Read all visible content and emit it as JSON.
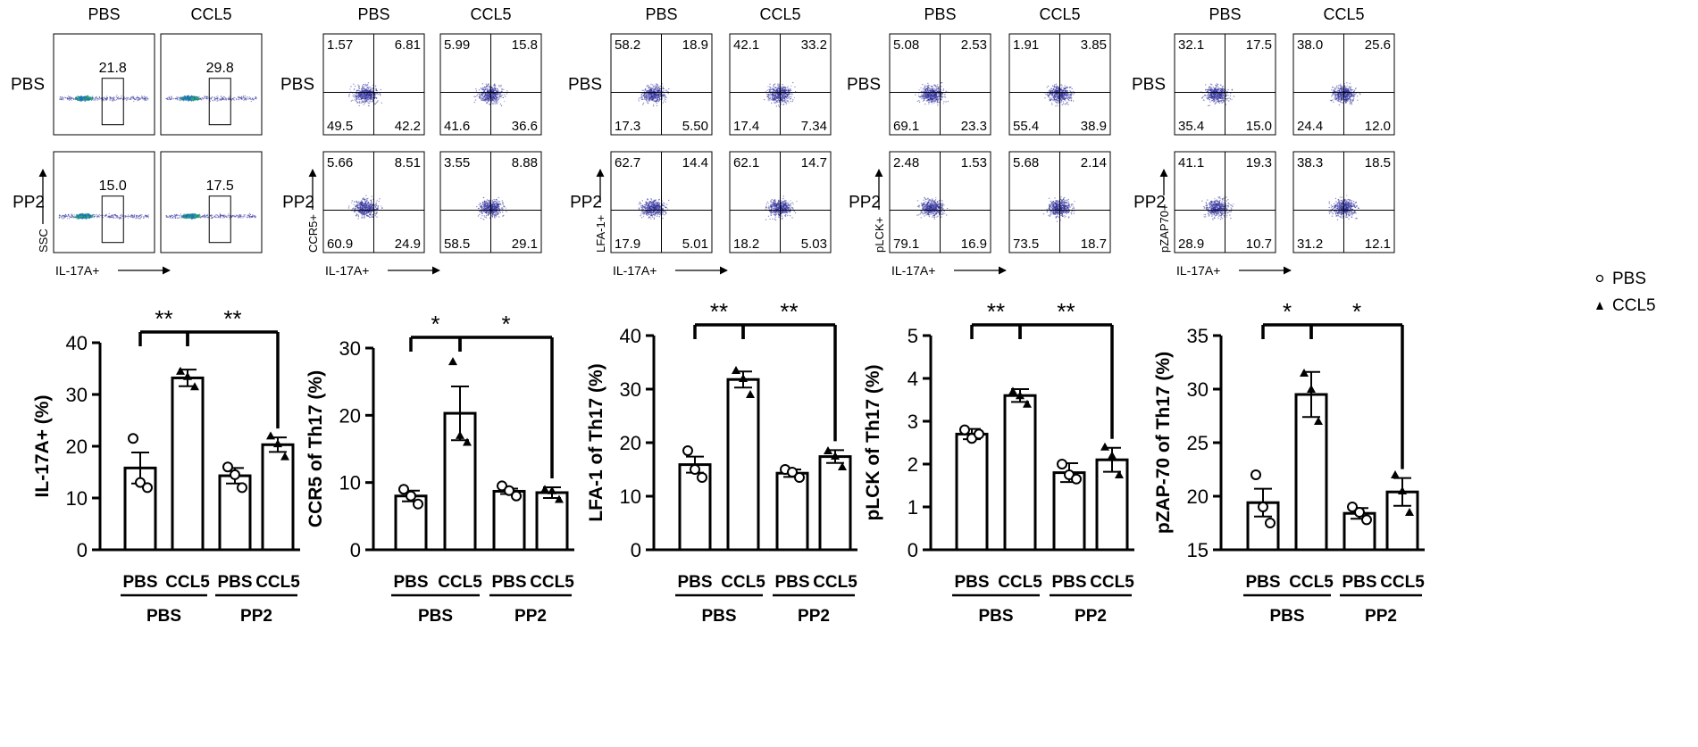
{
  "columns": [
    "PBS",
    "CCL5"
  ],
  "rows": [
    "PBS",
    "PP2"
  ],
  "x_axis_label": "IL-17A+",
  "legend": [
    {
      "label": "PBS",
      "marker": "circle"
    },
    {
      "label": "CCL5",
      "marker": "triangle"
    }
  ],
  "colors": {
    "bar_edge": "#000000",
    "axis": "#000000",
    "dot_low": "#1a1a8c",
    "dot_high": "#2fbf4a"
  },
  "flow_panels": [
    {
      "kind": "gate",
      "y_label": "SSC",
      "gate_values": [
        [
          "21.8",
          "29.8"
        ],
        [
          "15.0",
          "17.5"
        ]
      ]
    },
    {
      "kind": "quadrant",
      "y_label": "CCR5+",
      "quadrants": [
        [
          [
            "1.57",
            "6.81",
            "49.5",
            "42.2"
          ],
          [
            "5.99",
            "15.8",
            "41.6",
            "36.6"
          ]
        ],
        [
          [
            "5.66",
            "8.51",
            "60.9",
            "24.9"
          ],
          [
            "3.55",
            "8.88",
            "58.5",
            "29.1"
          ]
        ]
      ]
    },
    {
      "kind": "quadrant",
      "y_label": "LFA-1+",
      "quadrants": [
        [
          [
            "58.2",
            "18.9",
            "17.3",
            "5.50"
          ],
          [
            "42.1",
            "33.2",
            "17.4",
            "7.34"
          ]
        ],
        [
          [
            "62.7",
            "14.4",
            "17.9",
            "5.01"
          ],
          [
            "62.1",
            "14.7",
            "18.2",
            "5.03"
          ]
        ]
      ]
    },
    {
      "kind": "quadrant",
      "y_label": "pLCK+",
      "quadrants": [
        [
          [
            "5.08",
            "2.53",
            "69.1",
            "23.3"
          ],
          [
            "1.91",
            "3.85",
            "55.4",
            "38.9"
          ]
        ],
        [
          [
            "2.48",
            "1.53",
            "79.1",
            "16.9"
          ],
          [
            "5.68",
            "2.14",
            "73.5",
            "18.7"
          ]
        ]
      ]
    },
    {
      "kind": "quadrant",
      "y_label": "pZAP70+",
      "quadrants": [
        [
          [
            "32.1",
            "17.5",
            "35.4",
            "15.0"
          ],
          [
            "38.0",
            "25.6",
            "24.4",
            "12.0"
          ]
        ],
        [
          [
            "41.1",
            "19.3",
            "28.9",
            "10.7"
          ],
          [
            "38.3",
            "18.5",
            "31.2",
            "12.1"
          ]
        ]
      ]
    }
  ],
  "chart_data": [
    {
      "type": "bar",
      "ylabel": "IL-17A+ (%)",
      "ylim": [
        0,
        40
      ],
      "yticks": [
        "0",
        "10",
        "20",
        "30",
        "40"
      ],
      "categories": [
        "PBS",
        "CCL5",
        "PBS",
        "CCL5"
      ],
      "groups": [
        "PBS",
        "PP2"
      ],
      "values": [
        15.8,
        33.2,
        14.3,
        20.3
      ],
      "sem": [
        3.0,
        1.6,
        1.5,
        1.4
      ],
      "points": [
        [
          21.5,
          13.0,
          12.0
        ],
        [
          34.5,
          33.5,
          31.5
        ],
        [
          16.0,
          14.5,
          12.0
        ],
        [
          22.0,
          20.5,
          18.0
        ]
      ],
      "significance": [
        {
          "pair": [
            0,
            1
          ],
          "label": "**"
        },
        {
          "pair": [
            1,
            3
          ],
          "label": "**"
        }
      ]
    },
    {
      "type": "bar",
      "ylabel": "CCR5 of Th17 (%)",
      "ylim": [
        0,
        30
      ],
      "yticks": [
        "0",
        "10",
        "20",
        "30"
      ],
      "categories": [
        "PBS",
        "CCL5",
        "PBS",
        "CCL5"
      ],
      "groups": [
        "PBS",
        "PP2"
      ],
      "values": [
        8.0,
        20.3,
        8.7,
        8.5
      ],
      "sem": [
        0.8,
        4.0,
        0.4,
        0.8
      ],
      "points": [
        [
          9.0,
          8.0,
          6.8
        ],
        [
          28.0,
          17.0,
          16.0
        ],
        [
          9.5,
          8.8,
          8.0
        ],
        [
          9.0,
          8.8,
          7.5
        ]
      ],
      "significance": [
        {
          "pair": [
            0,
            1
          ],
          "label": "*"
        },
        {
          "pair": [
            1,
            3
          ],
          "label": "*"
        }
      ]
    },
    {
      "type": "bar",
      "ylabel": "LFA-1 of Th17 (%)",
      "ylim": [
        0,
        40
      ],
      "yticks": [
        "0",
        "10",
        "20",
        "30",
        "40"
      ],
      "categories": [
        "PBS",
        "CCL5",
        "PBS",
        "CCL5"
      ],
      "groups": [
        "PBS",
        "PP2"
      ],
      "values": [
        15.9,
        31.8,
        14.3,
        17.4
      ],
      "sem": [
        1.5,
        1.5,
        0.7,
        1.2
      ],
      "points": [
        [
          18.5,
          15.0,
          13.5
        ],
        [
          33.5,
          32.0,
          29.0
        ],
        [
          15.0,
          14.5,
          13.5
        ],
        [
          18.5,
          17.5,
          15.5
        ]
      ],
      "significance": [
        {
          "pair": [
            0,
            1
          ],
          "label": "**"
        },
        {
          "pair": [
            1,
            3
          ],
          "label": "**"
        }
      ]
    },
    {
      "type": "bar",
      "ylabel": "pLCK of Th17 (%)",
      "ylim": [
        0,
        5
      ],
      "yticks": [
        "0",
        "1",
        "2",
        "3",
        "4",
        "5"
      ],
      "categories": [
        "PBS",
        "CCL5",
        "PBS",
        "CCL5"
      ],
      "groups": [
        "PBS",
        "PP2"
      ],
      "values": [
        2.7,
        3.6,
        1.8,
        2.1
      ],
      "sem": [
        0.12,
        0.15,
        0.22,
        0.28
      ],
      "points": [
        [
          2.8,
          2.6,
          2.7
        ],
        [
          3.7,
          3.6,
          3.4
        ],
        [
          2.0,
          1.75,
          1.65
        ],
        [
          2.4,
          2.2,
          1.75
        ]
      ],
      "significance": [
        {
          "pair": [
            0,
            1
          ],
          "label": "**"
        },
        {
          "pair": [
            1,
            3
          ],
          "label": "**"
        }
      ]
    },
    {
      "type": "bar",
      "ylabel": "pZAP-70 of Th17 (%)",
      "ylim": [
        15,
        35
      ],
      "yticks": [
        "15",
        "20",
        "25",
        "30",
        "35"
      ],
      "categories": [
        "PBS",
        "CCL5",
        "PBS",
        "CCL5"
      ],
      "groups": [
        "PBS",
        "PP2"
      ],
      "values": [
        19.4,
        29.5,
        18.4,
        20.4
      ],
      "sem": [
        1.3,
        2.1,
        0.5,
        1.3
      ],
      "points": [
        [
          22.0,
          19.0,
          17.5
        ],
        [
          31.5,
          30.0,
          27.0
        ],
        [
          19.0,
          18.5,
          17.8
        ],
        [
          22.0,
          20.5,
          18.5
        ]
      ],
      "significance": [
        {
          "pair": [
            0,
            1
          ],
          "label": "*"
        },
        {
          "pair": [
            1,
            3
          ],
          "label": "*"
        }
      ]
    }
  ]
}
